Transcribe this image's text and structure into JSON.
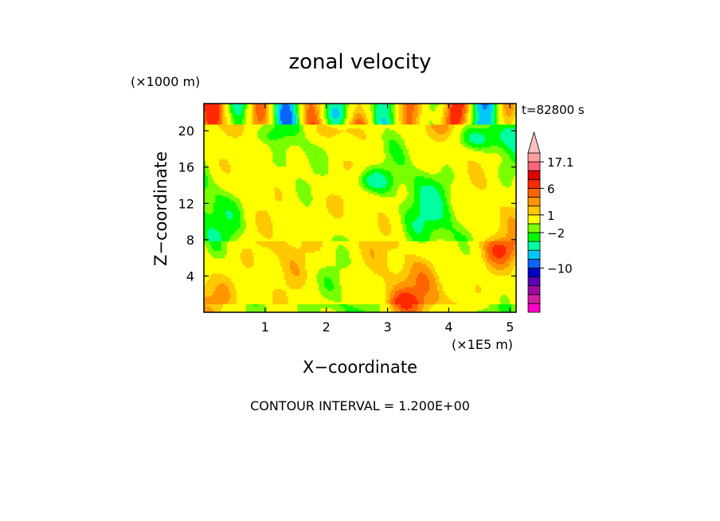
{
  "chart_data": {
    "type": "heatmap",
    "title": "zonal velocity",
    "xlabel": "X−coordinate",
    "ylabel": "Z−coordinate",
    "x_unit": "(×1E5 m)",
    "y_unit": "(×1000 m)",
    "time_label": "t=82800 s",
    "footer": "CONTOUR INTERVAL = 1.200E+00",
    "xlim": [
      0,
      5.1
    ],
    "ylim": [
      0,
      23
    ],
    "x_ticks": [
      "1",
      "2",
      "3",
      "4",
      "5"
    ],
    "y_ticks": [
      "4",
      "8",
      "12",
      "16",
      "20"
    ],
    "colorbar": {
      "labels": [
        "17.1",
        "6",
        "1",
        "−2",
        "−10"
      ],
      "label_values": [
        17.1,
        6,
        1,
        -2,
        -10
      ],
      "extend": "max",
      "levels": [
        {
          "color": "#ff00c8"
        },
        {
          "color": "#d21ea0"
        },
        {
          "color": "#a00aa0"
        },
        {
          "color": "#5a00b4"
        },
        {
          "color": "#0000c8"
        },
        {
          "color": "#0a64ff"
        },
        {
          "color": "#00c8ff"
        },
        {
          "color": "#00ffa0"
        },
        {
          "color": "#00ff00"
        },
        {
          "color": "#78ff00"
        },
        {
          "color": "#ffff00"
        },
        {
          "color": "#ffc800"
        },
        {
          "color": "#ff9600"
        },
        {
          "color": "#ff6400"
        },
        {
          "color": "#ff2800"
        },
        {
          "color": "#e10000"
        },
        {
          "color": "#ff6478"
        },
        {
          "color": "#ffa0a0"
        }
      ]
    },
    "grid": false
  }
}
